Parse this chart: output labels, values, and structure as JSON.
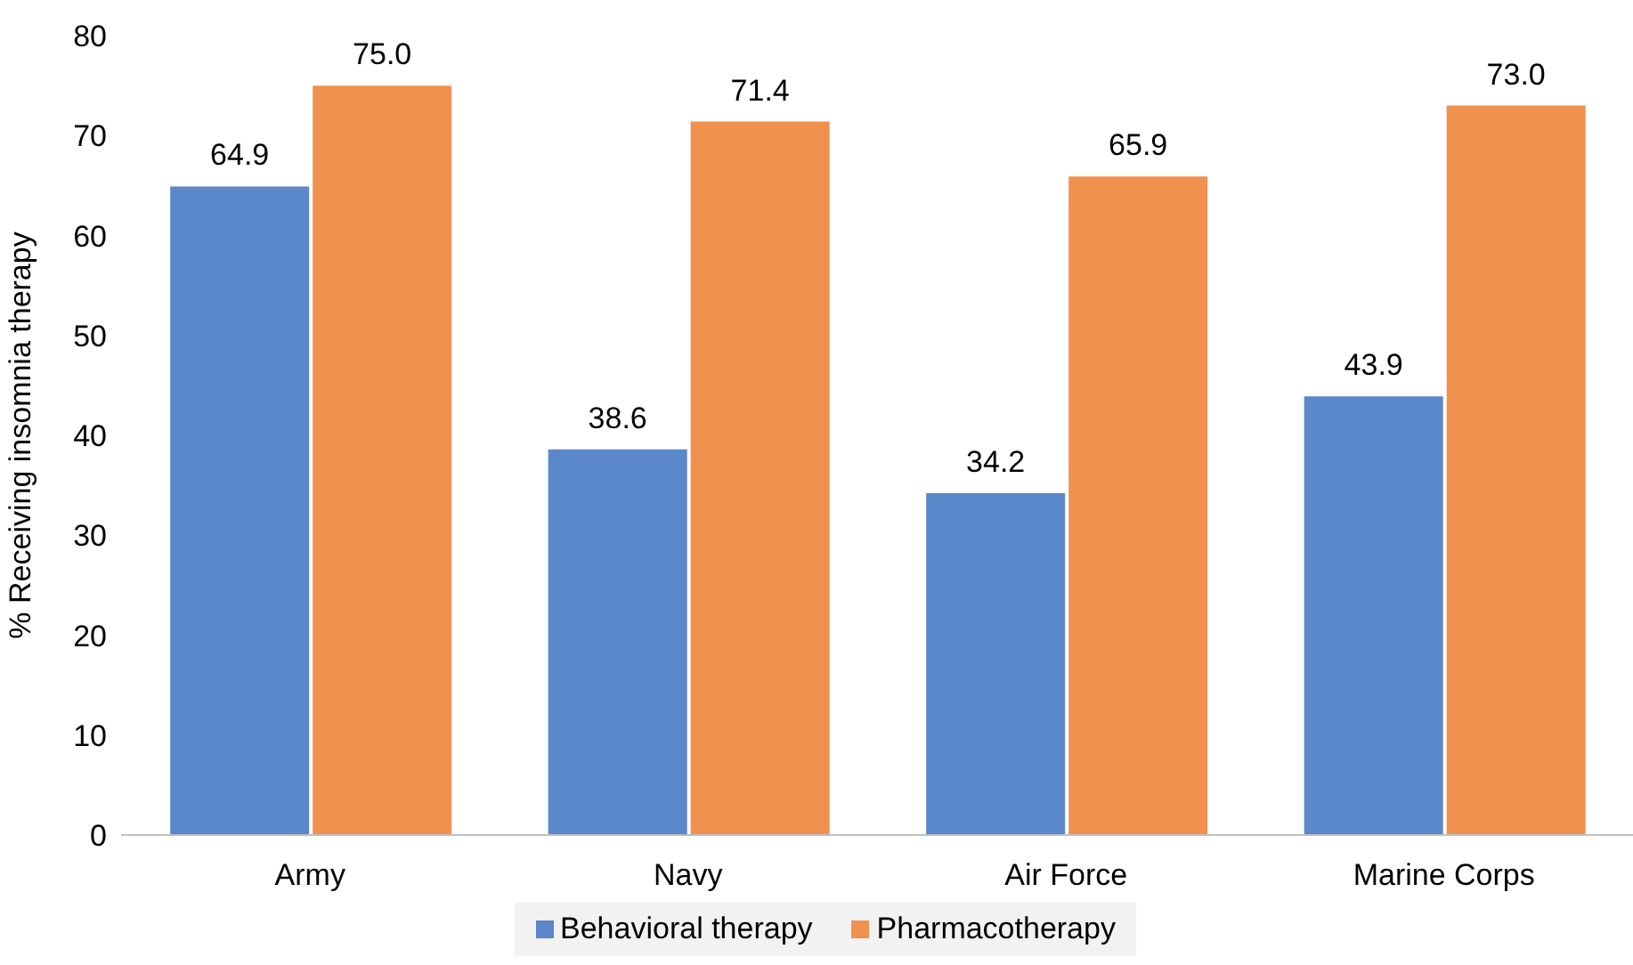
{
  "chart_data": {
    "type": "bar",
    "ylabel": "% Receiving insomnia therapy",
    "categories": [
      "Army",
      "Navy",
      "Air Force",
      "Marine Corps"
    ],
    "series": [
      {
        "name": "Behavioral therapy",
        "color": "#5b87cb",
        "values": [
          64.9,
          38.6,
          34.2,
          43.9
        ],
        "value_labels": [
          "64.9",
          "38.6",
          "34.2",
          "43.9"
        ]
      },
      {
        "name": "Pharmacotherapy",
        "color": "#f0914f",
        "values": [
          75.0,
          71.4,
          65.9,
          73.0
        ],
        "value_labels": [
          "75.0",
          "71.4",
          "65.9",
          "73.0"
        ]
      }
    ],
    "ylim": [
      0,
      80
    ],
    "yticks": [
      0,
      10,
      20,
      30,
      40,
      50,
      60,
      70,
      80
    ],
    "grid": false,
    "legend": "bottom"
  }
}
